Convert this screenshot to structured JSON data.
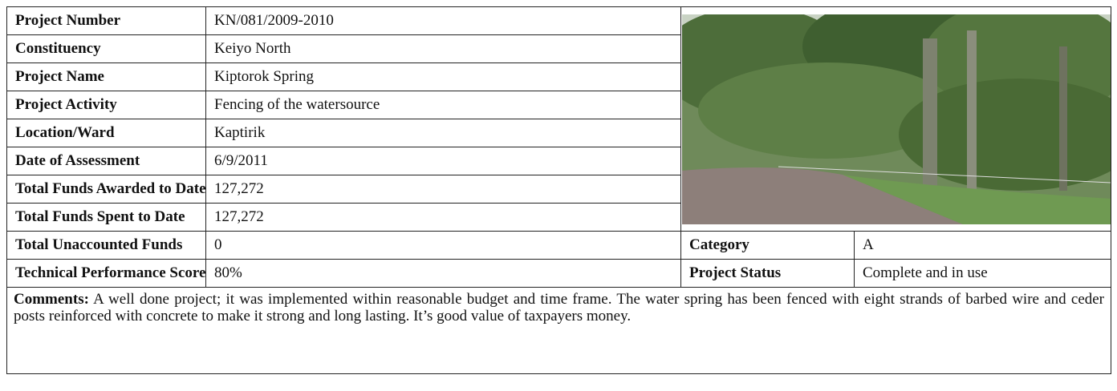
{
  "table": {
    "rows": [
      {
        "label": "Project Number",
        "value": "KN/081/2009-2010"
      },
      {
        "label": "Constituency",
        "value": "Keiyo North"
      },
      {
        "label": "Project Name",
        "value": "Kiptorok Spring"
      },
      {
        "label": "Project Activity",
        "value": "Fencing of the watersource"
      },
      {
        "label": "Location/Ward",
        "value": "Kaptirik"
      },
      {
        "label": "Date of Assessment",
        "value": "6/9/2011"
      },
      {
        "label": "Total Funds Awarded to Date",
        "value": "127,272"
      },
      {
        "label": "Total Funds Spent to Date",
        "value": "127,272"
      },
      {
        "label": "Total Unaccounted Funds",
        "value": "0"
      },
      {
        "label": "Technical Performance Score",
        "value": "80%"
      }
    ],
    "side_rows": [
      {
        "label": "Category",
        "value": "A"
      },
      {
        "label": "Project Status",
        "value": "Complete and in use"
      }
    ],
    "comments": {
      "label": "Comments:",
      "text": "A well done project; it was implemented within reasonable budget and time frame. The water spring has been fenced with eight strands of barbed wire and ceder posts reinforced with concrete to make it strong and long lasting. It’s good value of taxpayers money."
    }
  }
}
